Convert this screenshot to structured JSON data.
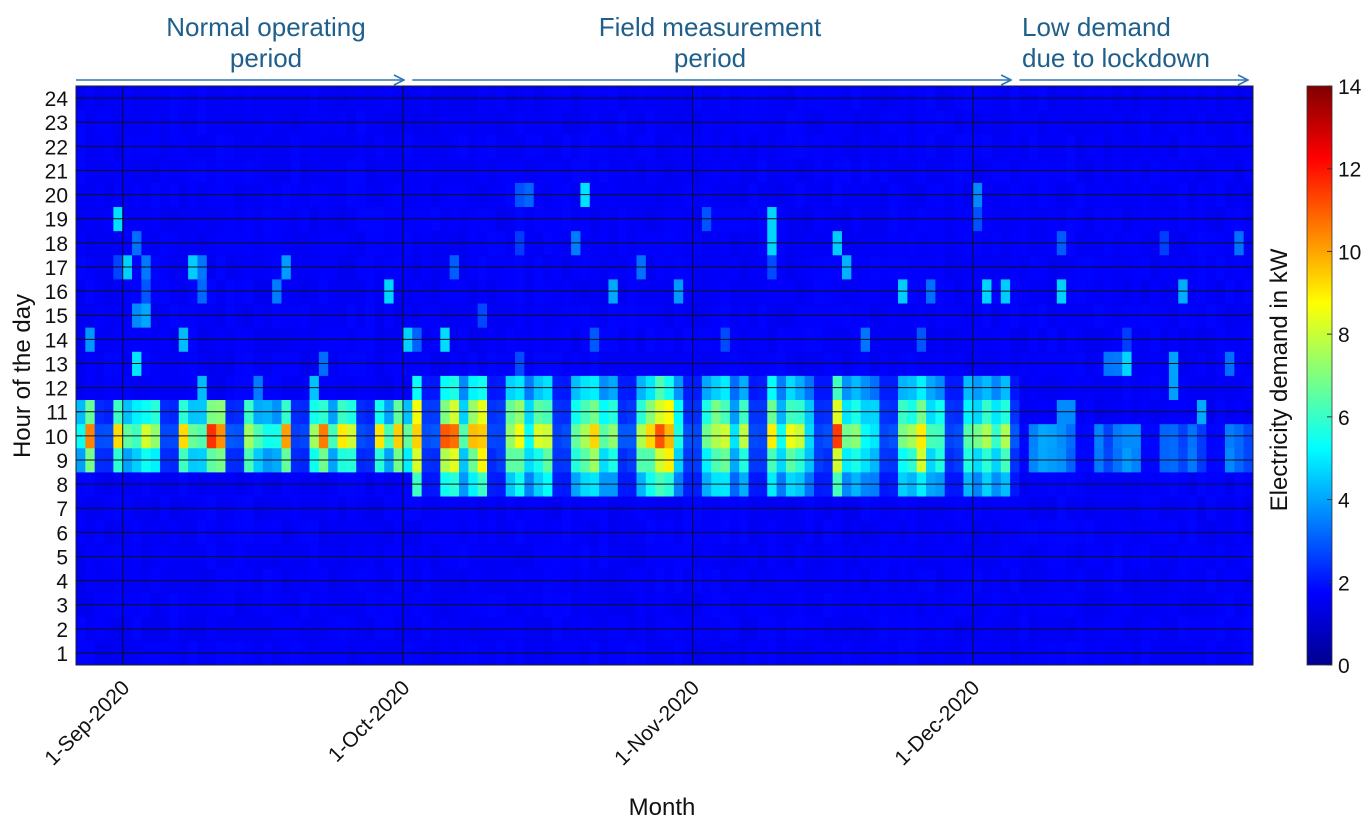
{
  "chart_data": {
    "type": "heatmap",
    "xlabel": "Month",
    "ylabel": "Hour of the day",
    "x_tick_labels": [
      "1-Sep-2020",
      "1-Oct-2020",
      "1-Nov-2020",
      "1-Dec-2020"
    ],
    "x_range": [
      "27-Aug-2020",
      "31-Dec-2020"
    ],
    "y_ticks": [
      1,
      2,
      3,
      4,
      5,
      6,
      7,
      8,
      9,
      10,
      11,
      12,
      13,
      14,
      15,
      16,
      17,
      18,
      19,
      20,
      21,
      22,
      23,
      24
    ],
    "y_range": [
      0.5,
      24.5
    ],
    "colorbar": {
      "label": "Electricity demand in kW",
      "min": 0,
      "max": 14,
      "ticks": [
        0,
        2,
        4,
        6,
        8,
        10,
        12,
        14
      ],
      "colormap": "jet"
    },
    "grid": true,
    "annotations": [
      {
        "text": "Normal operating period",
        "lines": [
          "Normal operating",
          "period"
        ],
        "from": "27-Aug-2020",
        "to": "1-Oct-2020"
      },
      {
        "text": "Field measurement period",
        "lines": [
          "Field measurement",
          "period"
        ],
        "from": "2-Oct-2020",
        "to": "5-Dec-2020"
      },
      {
        "text": "Low demand due to lockdown",
        "lines": [
          "Low demand",
          "due to lockdown"
        ],
        "from": "6-Dec-2020",
        "to": "31-Dec-2020"
      }
    ],
    "daily_profiles": [
      {
        "period": "normal-operating",
        "active_hours": "08:00-11:00",
        "typical_peak_kW": 7,
        "max_kW": 10
      },
      {
        "period": "field-measurement",
        "active_hours": "07:00-12:00",
        "typical_peak_kW": 7,
        "max_kW": 10
      },
      {
        "period": "lockdown",
        "active_hours": "08:00-10:00",
        "typical_peak_kW": 3,
        "max_kW": 3.5
      },
      {
        "period": "night-baseline",
        "active_hours": "00:00-07:00",
        "typical_peak_kW": 0.3,
        "max_kW": 0.5
      }
    ]
  }
}
